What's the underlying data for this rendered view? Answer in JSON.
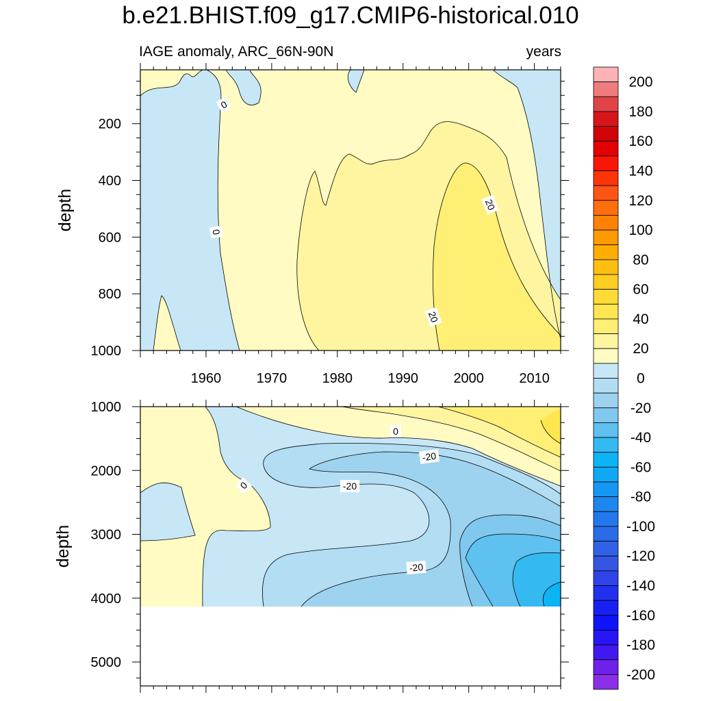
{
  "chart_data": {
    "type": "contour",
    "title": "b.e21.BHIST.f09_g17.CMIP6-historical.010",
    "subtitle_left": "IAGE anomaly, ARC_66N-90N",
    "subtitle_right": "years",
    "xlabel": "",
    "x_ticks": [
      1960,
      1970,
      1980,
      1990,
      2000,
      2010
    ],
    "xlim": [
      1950,
      2014
    ],
    "contour_interval": 10,
    "colorbar": {
      "labels": [
        200,
        180,
        160,
        140,
        120,
        100,
        80,
        60,
        40,
        20,
        0,
        -20,
        -40,
        -60,
        -80,
        -100,
        -120,
        -140,
        -160,
        -180,
        -200
      ],
      "colors": [
        "#fbb3b6",
        "#f07b7d",
        "#e24346",
        "#d61619",
        "#cf0508",
        "#e30000",
        "#fa1606",
        "#ff3408",
        "#ff5514",
        "#ff6f0c",
        "#ff8204",
        "#ff9a00",
        "#ffad00",
        "#ffbf10",
        "#ffce20",
        "#ffdb35",
        "#ffe650",
        "#ffef75",
        "#fff5a0",
        "#fffbc2",
        "#c7e7f7",
        "#b2ddf3",
        "#9dd3ef",
        "#81c8ee",
        "#5ec1ef",
        "#34baf1",
        "#0cb4f5",
        "#0fa8f5",
        "#1697f3",
        "#1c87ef",
        "#2378ec",
        "#2a6ce8",
        "#3162e5",
        "#3556e3",
        "#2e44e8",
        "#2231ee",
        "#1720f3",
        "#0f15f8",
        "#2816f5",
        "#4218f0",
        "#6d21ea",
        "#8b2fe6"
      ]
    },
    "panels": [
      {
        "name": "upper",
        "ylabel": "depth",
        "y_ticks": [
          200,
          400,
          600,
          800,
          1000
        ],
        "ylim": [
          10,
          1000
        ],
        "contour_labels": [
          "0",
          "0",
          "20",
          "20"
        ]
      },
      {
        "name": "lower",
        "ylabel": "depth",
        "y_ticks": [
          1000,
          2000,
          3000,
          4000,
          5000
        ],
        "ylim": [
          1000,
          5375
        ],
        "data_max_depth": 4125,
        "contour_labels": [
          "0",
          "0",
          "-20",
          "-20",
          "-20"
        ]
      }
    ],
    "regions": {
      "upper": {
        "neg_0_10": "#c7e7f7",
        "pos_0_10": "#fffbc2",
        "pos_10_20": "#fff5a0",
        "pos_20_30": "#ffef75"
      },
      "lower": {
        "pos_0_10": "#fffbc2",
        "pos_10_20": "#fff5a0",
        "pos_20_30": "#ffef75",
        "pos_30_40": "#ffe650",
        "neg_0_10": "#c7e7f7",
        "neg_10_20": "#b2ddf3",
        "neg_20_30": "#9dd3ef",
        "neg_30_40": "#81c8ee",
        "neg_40_50": "#5ec1ef",
        "neg_50_60": "#34baf1",
        "neg_60_70": "#0cb4f5"
      }
    }
  }
}
